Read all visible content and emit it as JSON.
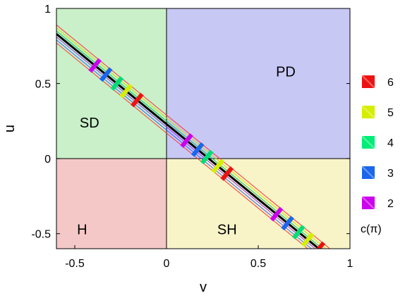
{
  "chart_data": {
    "type": "line",
    "xlabel": "v",
    "ylabel": "u",
    "xlim": [
      -0.6,
      1.0
    ],
    "ylim": [
      -0.6,
      1.0
    ],
    "x_ticks": [
      "-0.5",
      "0",
      "0.5",
      "1"
    ],
    "y_ticks": [
      "-0.5",
      "0",
      "0.5",
      "1"
    ],
    "x_tick_values": [
      -0.5,
      0,
      0.5,
      1
    ],
    "y_tick_values": [
      -0.5,
      0,
      0.5,
      1
    ],
    "regions": [
      {
        "label": "SD",
        "x": [
          -0.6,
          0
        ],
        "y": [
          0,
          1.0
        ],
        "color": "#c9f0c9",
        "label_at": [
          -0.42,
          0.24
        ]
      },
      {
        "label": "PD",
        "x": [
          0,
          1.0
        ],
        "y": [
          0,
          1.0
        ],
        "color": "#c8c8f5",
        "label_at": [
          0.65,
          0.58
        ]
      },
      {
        "label": "H",
        "x": [
          -0.6,
          0
        ],
        "y": [
          -0.6,
          0
        ],
        "color": "#f5c8c8",
        "label_at": [
          -0.46,
          -0.47
        ]
      },
      {
        "label": "SH",
        "x": [
          0,
          1.0
        ],
        "y": [
          -0.6,
          0
        ],
        "color": "#f8f4c8",
        "label_at": [
          0.33,
          -0.47
        ]
      }
    ],
    "band": {
      "slope": -1,
      "intercepts": [
        0.23,
        0.21,
        0.25,
        0.19,
        0.27,
        0.17,
        0.29
      ],
      "colors": [
        "#000000",
        "#9933ff",
        "#00cc66",
        "#3366ff",
        "#ccdd00",
        "#ff3333",
        "#ff3333"
      ],
      "x_range": [
        -0.6,
        0.9
      ]
    },
    "markers": [
      {
        "c": 2,
        "color": "#cc00ee",
        "x": [
          -0.39,
          0.11,
          0.6
        ]
      },
      {
        "c": 3,
        "color": "#1a66ee",
        "x": [
          -0.33,
          0.17,
          0.66
        ]
      },
      {
        "c": 4,
        "color": "#00dd77",
        "x": [
          -0.27,
          0.22,
          0.72
        ]
      },
      {
        "c": 5,
        "color": "#d4ee00",
        "x": [
          -0.22,
          0.28,
          0.77
        ]
      },
      {
        "c": 6,
        "color": "#ee1111",
        "x": [
          -0.16,
          0.33,
          0.83
        ]
      }
    ],
    "legend": {
      "title": "c(π)",
      "entries": [
        {
          "label": "6",
          "color": "#ee1111"
        },
        {
          "label": "5",
          "color": "#d4ee00"
        },
        {
          "label": "4",
          "color": "#00ee77"
        },
        {
          "label": "3",
          "color": "#1a66ee"
        },
        {
          "label": "2",
          "color": "#cc00ee"
        }
      ]
    }
  }
}
